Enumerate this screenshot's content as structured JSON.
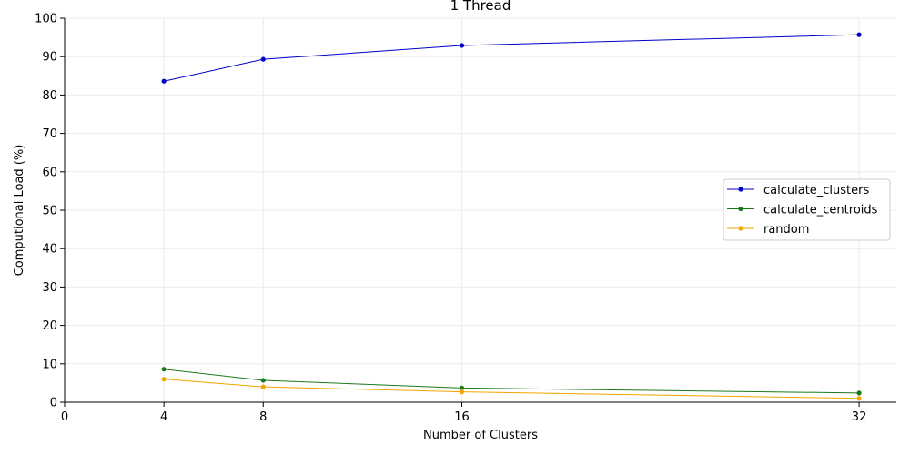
{
  "chart_data": {
    "type": "line",
    "title": "1 Thread",
    "xlabel": "Number of Clusters",
    "ylabel": "Computional Load (%)",
    "xlim": [
      0,
      33.5
    ],
    "ylim": [
      0,
      100
    ],
    "xticks": [
      0,
      4,
      8,
      16,
      32
    ],
    "yticks": [
      0,
      10,
      20,
      30,
      40,
      50,
      60,
      70,
      80,
      90,
      100
    ],
    "x": [
      4,
      8,
      16,
      32
    ],
    "grid": true,
    "legend_position": "center-right",
    "series": [
      {
        "name": "calculate_clusters",
        "color": "#0000cc",
        "values": [
          83.6,
          89.3,
          92.9,
          95.7
        ]
      },
      {
        "name": "calculate_centroids",
        "color": "#1a7a1a",
        "values": [
          8.6,
          5.7,
          3.7,
          2.4
        ]
      },
      {
        "name": "random",
        "color": "#f5a500",
        "values": [
          6.0,
          4.0,
          2.7,
          1.0
        ]
      }
    ]
  }
}
